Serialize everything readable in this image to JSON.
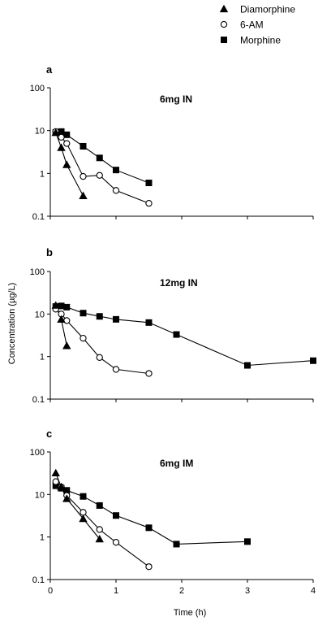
{
  "legend": [
    {
      "name": "Diamorphine",
      "marker": "triangle"
    },
    {
      "name": "6-AM",
      "marker": "circle-open"
    },
    {
      "name": "Morphine",
      "marker": "square"
    }
  ],
  "ylabel": "Concentration (µg/L)",
  "xlabel": "Time (h)",
  "chart_data": [
    {
      "type": "line",
      "panel": "a",
      "title": "6mg IN",
      "yscale": "log",
      "ylim": [
        0.1,
        100
      ],
      "xlim": [
        0,
        4
      ],
      "y_ticks": [
        "100",
        "10",
        "1",
        "0.1"
      ],
      "x_ticks": [],
      "series": [
        {
          "name": "Diamorphine",
          "x": [
            0.083,
            0.167,
            0.25,
            0.5
          ],
          "y": [
            9.0,
            4.0,
            1.6,
            0.3
          ]
        },
        {
          "name": "6-AM",
          "x": [
            0.083,
            0.167,
            0.25,
            0.5,
            0.75,
            1.0,
            1.5
          ],
          "y": [
            9.5,
            7.0,
            5.0,
            0.85,
            0.9,
            0.4,
            0.2
          ]
        },
        {
          "name": "Morphine",
          "x": [
            0.083,
            0.167,
            0.25,
            0.5,
            0.75,
            1.0,
            1.5
          ],
          "y": [
            9.0,
            9.5,
            8.0,
            4.3,
            2.3,
            1.2,
            0.6
          ]
        }
      ]
    },
    {
      "type": "line",
      "panel": "b",
      "title": "12mg IN",
      "yscale": "log",
      "ylim": [
        0.1,
        100
      ],
      "xlim": [
        0,
        4
      ],
      "y_ticks": [
        "100",
        "10",
        "1",
        "0.1"
      ],
      "x_ticks": [],
      "series": [
        {
          "name": "Diamorphine",
          "x": [
            0.083,
            0.167,
            0.25
          ],
          "y": [
            16,
            7.5,
            1.8
          ]
        },
        {
          "name": "6-AM",
          "x": [
            0.083,
            0.167,
            0.25,
            0.5,
            0.75,
            1.0,
            1.5
          ],
          "y": [
            13,
            10,
            7.0,
            2.7,
            0.95,
            0.5,
            0.4
          ]
        },
        {
          "name": "Morphine",
          "x": [
            0.083,
            0.167,
            0.25,
            0.5,
            0.75,
            1.0,
            1.5,
            1.92,
            3.0,
            4.0
          ],
          "y": [
            15,
            15.5,
            14.5,
            10.5,
            8.8,
            7.5,
            6.3,
            3.3,
            0.62,
            0.8
          ]
        }
      ]
    },
    {
      "type": "line",
      "panel": "c",
      "title": "6mg IM",
      "yscale": "log",
      "ylim": [
        0.1,
        100
      ],
      "xlim": [
        0,
        4
      ],
      "y_ticks": [
        "100",
        "10",
        "1",
        "0.1"
      ],
      "x_ticks": [
        "0",
        "1",
        "2",
        "3",
        "4"
      ],
      "series": [
        {
          "name": "Diamorphine",
          "x": [
            0.083,
            0.167,
            0.25,
            0.5,
            0.75
          ],
          "y": [
            32,
            15,
            8.0,
            2.7,
            0.9
          ]
        },
        {
          "name": "6-AM",
          "x": [
            0.083,
            0.167,
            0.25,
            0.5,
            0.75,
            1.0,
            1.5
          ],
          "y": [
            20,
            15,
            9.5,
            3.8,
            1.5,
            0.75,
            0.2
          ]
        },
        {
          "name": "Morphine",
          "x": [
            0.083,
            0.167,
            0.25,
            0.5,
            0.75,
            1.0,
            1.5,
            1.92,
            3.0
          ],
          "y": [
            16,
            14,
            12.5,
            9.0,
            5.5,
            3.2,
            1.65,
            0.68,
            0.78
          ]
        }
      ]
    }
  ]
}
